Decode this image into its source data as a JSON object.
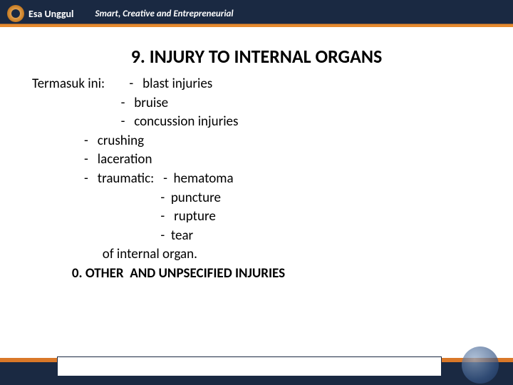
{
  "header": {
    "logo_text": "Esa Unggul",
    "tagline": "Smart, Creative and Entrepreneurial",
    "navy_color": "#1a2942",
    "orange_color": "#d97828"
  },
  "slide": {
    "title": "9. INJURY TO INTERNAL ORGANS",
    "intro": "Termasuk ini:",
    "list_level1_a": [
      "blast injuries",
      "bruise",
      "concussion injuries"
    ],
    "list_level1_b": [
      "crushing",
      "laceration"
    ],
    "traumatic_label": "traumatic:",
    "traumatic_sublist": [
      "hematoma",
      "puncture",
      "rupture",
      "tear"
    ],
    "traumatic_tail": "of internal organ.",
    "final_line": "0. OTHER  AND UNPSECIFIED INJURIES"
  },
  "style": {
    "title_fontsize": 26,
    "body_fontsize": 19,
    "text_color": "#000000",
    "background": "#ffffff"
  }
}
